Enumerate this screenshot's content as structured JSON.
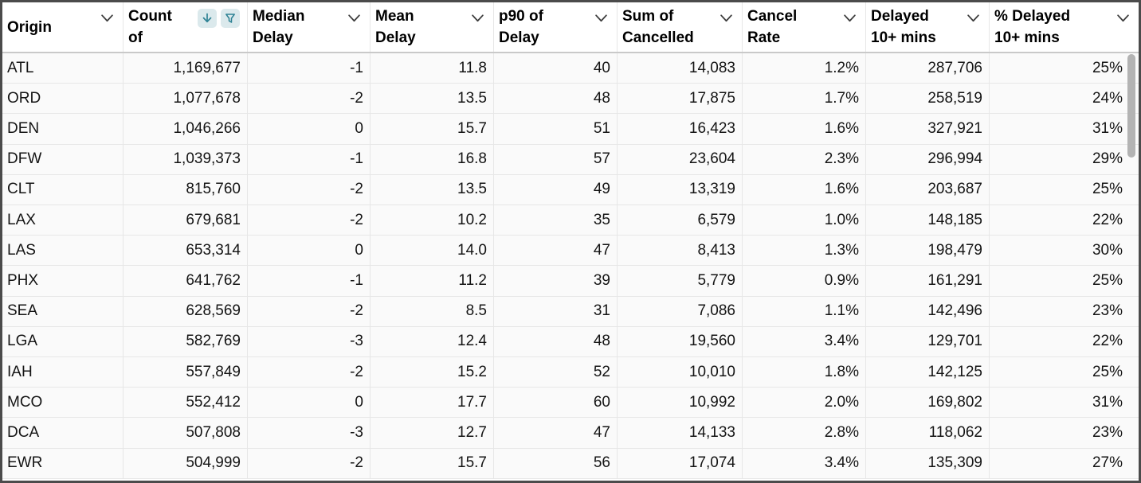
{
  "table": {
    "colors": {
      "accent_teal": "#2E8294",
      "icon_chip_bg": "#DBE9EC",
      "outer_border": "#4B4B4B",
      "grid_line": "#E7E7E7",
      "header_divider": "#C9C9C9",
      "row_bg": "#FAFAFA",
      "header_bg": "#FFFFFF",
      "scrollbar_thumb": "#B3B3B3",
      "text": "#141414"
    },
    "columns": [
      {
        "id": "origin",
        "line1": "Origin",
        "line2": "",
        "align": "left",
        "menu": true
      },
      {
        "id": "count-of",
        "line1": "Count",
        "line2": "of",
        "align": "right",
        "sorted": "descending",
        "filtered": true
      },
      {
        "id": "median-delay",
        "line1": "Median",
        "line2": "Delay",
        "align": "right",
        "menu": true
      },
      {
        "id": "mean-delay",
        "line1": "Mean",
        "line2": "Delay",
        "align": "right",
        "menu": true
      },
      {
        "id": "p90-of-delay",
        "line1": "p90 of",
        "line2": "Delay",
        "align": "right",
        "menu": true
      },
      {
        "id": "sum-of-cancelled",
        "line1": "Sum of",
        "line2": "Cancelled",
        "align": "right",
        "menu": true
      },
      {
        "id": "cancel-rate",
        "line1": "Cancel",
        "line2": "Rate",
        "align": "right",
        "menu": true
      },
      {
        "id": "delayed-10-mins",
        "line1": "Delayed",
        "line2": "10+ mins",
        "align": "right",
        "menu": true
      },
      {
        "id": "pct-delayed-10",
        "line1": "% Delayed",
        "line2": "10+ mins",
        "align": "right",
        "menu": true
      }
    ],
    "rows": [
      [
        "ATL",
        "1,169,677",
        "-1",
        "11.8",
        "40",
        "14,083",
        "1.2%",
        "287,706",
        "25%"
      ],
      [
        "ORD",
        "1,077,678",
        "-2",
        "13.5",
        "48",
        "17,875",
        "1.7%",
        "258,519",
        "24%"
      ],
      [
        "DEN",
        "1,046,266",
        "0",
        "15.7",
        "51",
        "16,423",
        "1.6%",
        "327,921",
        "31%"
      ],
      [
        "DFW",
        "1,039,373",
        "-1",
        "16.8",
        "57",
        "23,604",
        "2.3%",
        "296,994",
        "29%"
      ],
      [
        "CLT",
        "815,760",
        "-2",
        "13.5",
        "49",
        "13,319",
        "1.6%",
        "203,687",
        "25%"
      ],
      [
        "LAX",
        "679,681",
        "-2",
        "10.2",
        "35",
        "6,579",
        "1.0%",
        "148,185",
        "22%"
      ],
      [
        "LAS",
        "653,314",
        "0",
        "14.0",
        "47",
        "8,413",
        "1.3%",
        "198,479",
        "30%"
      ],
      [
        "PHX",
        "641,762",
        "-1",
        "11.2",
        "39",
        "5,779",
        "0.9%",
        "161,291",
        "25%"
      ],
      [
        "SEA",
        "628,569",
        "-2",
        "8.5",
        "31",
        "7,086",
        "1.1%",
        "142,496",
        "23%"
      ],
      [
        "LGA",
        "582,769",
        "-3",
        "12.4",
        "48",
        "19,560",
        "3.4%",
        "129,701",
        "22%"
      ],
      [
        "IAH",
        "557,849",
        "-2",
        "15.2",
        "52",
        "10,010",
        "1.8%",
        "142,125",
        "25%"
      ],
      [
        "MCO",
        "552,412",
        "0",
        "17.7",
        "60",
        "10,992",
        "2.0%",
        "169,802",
        "31%"
      ],
      [
        "DCA",
        "507,808",
        "-3",
        "12.7",
        "47",
        "14,133",
        "2.8%",
        "118,062",
        "23%"
      ],
      [
        "EWR",
        "504,999",
        "-2",
        "15.7",
        "56",
        "17,074",
        "3.4%",
        "135,309",
        "27%"
      ]
    ],
    "icons": {
      "sort": "arrow-down",
      "filter": "funnel",
      "column_menu": "chevron-down"
    }
  }
}
